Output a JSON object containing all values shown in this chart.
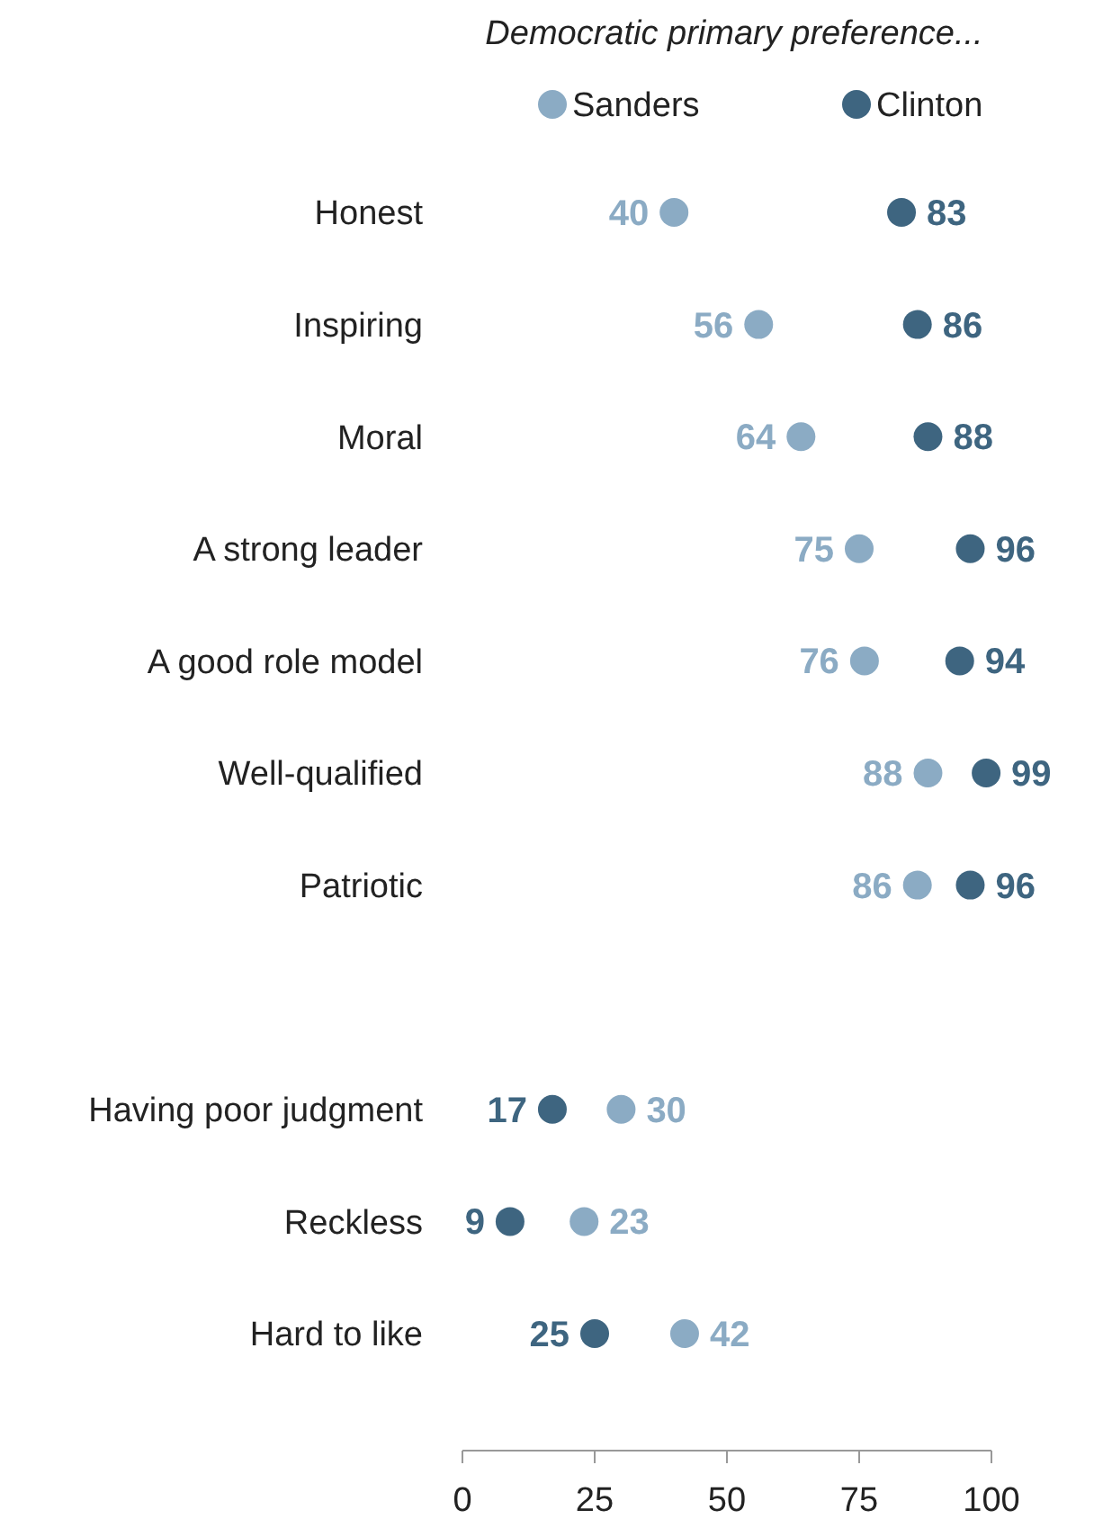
{
  "chart_data": {
    "type": "scatter",
    "orientation": "horizontal",
    "legend_title": "Democratic primary preference...",
    "legend": "top",
    "data_labels": true,
    "marker": "circle",
    "xlim": [
      0,
      100
    ],
    "xticks": [
      0,
      25,
      50,
      75,
      100
    ],
    "grid": false,
    "categories": [
      "Honest",
      "Inspiring",
      "Moral",
      "A strong leader",
      "A good role model",
      "Well-qualified",
      "Patriotic",
      null,
      "Having poor judgment",
      "Reckless",
      "Hard to like"
    ],
    "series": [
      {
        "name": "Sanders",
        "color": "#8babc4",
        "values": [
          40,
          56,
          64,
          75,
          76,
          88,
          86,
          null,
          30,
          23,
          42
        ]
      },
      {
        "name": "Clinton",
        "color": "#3e6580",
        "values": [
          83,
          86,
          88,
          96,
          94,
          99,
          96,
          null,
          17,
          9,
          25
        ]
      }
    ]
  }
}
